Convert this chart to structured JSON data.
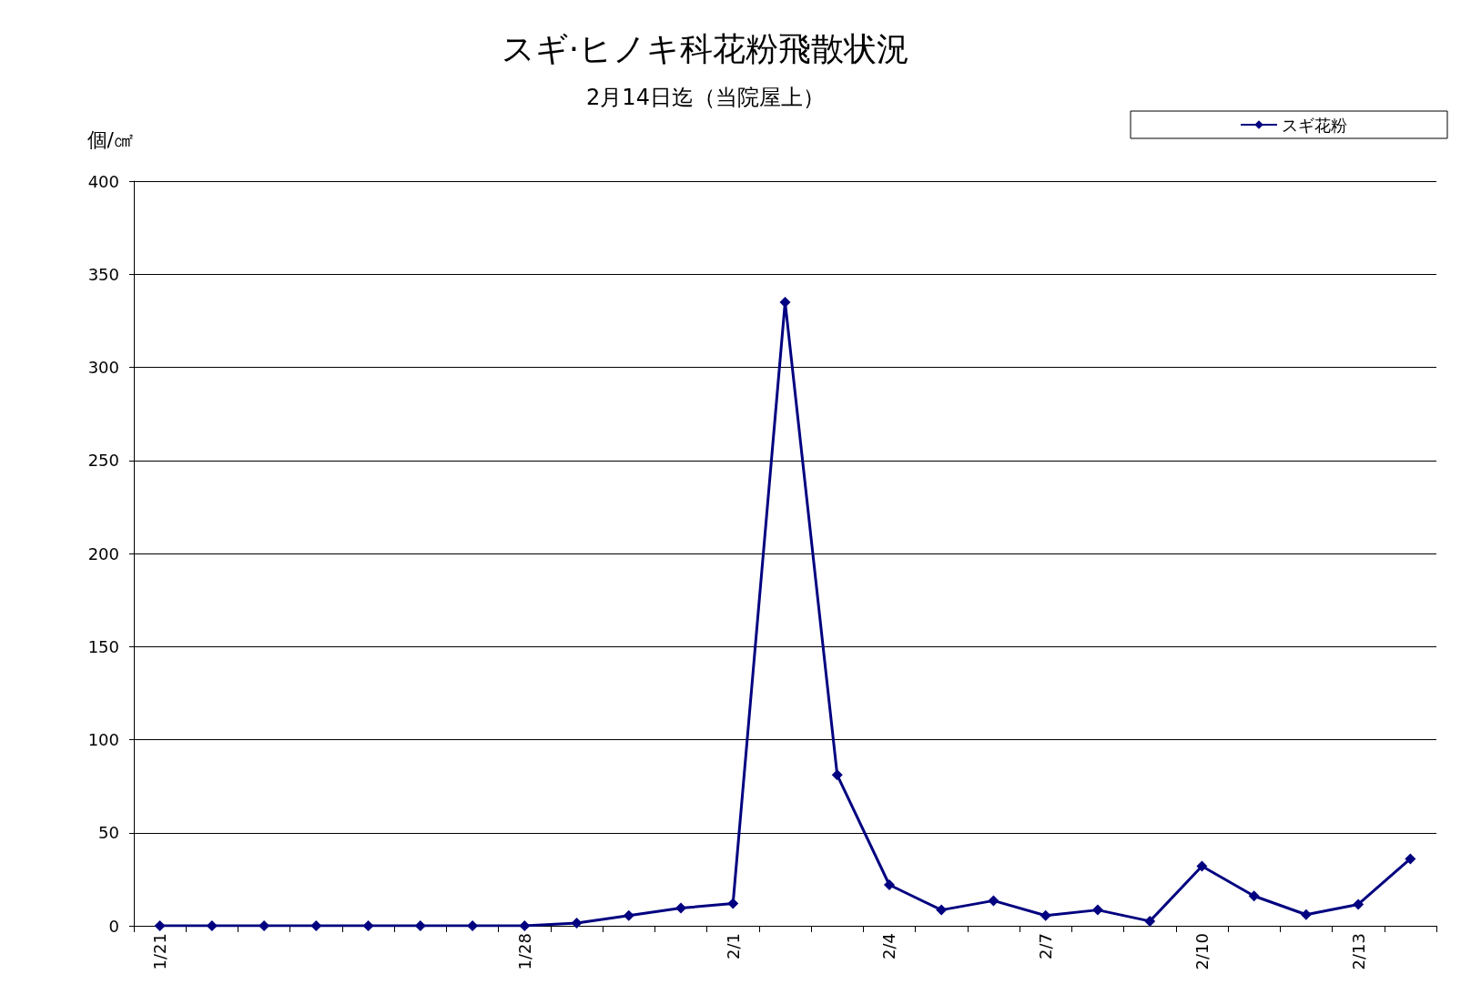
{
  "chart_data": {
    "type": "line",
    "title": "スギ·ヒノキ科花粉飛散状況",
    "subtitle": "2月14日迄（当院屋上）",
    "ylabel": "個/㎠",
    "categories": [
      "1/21",
      null,
      null,
      null,
      null,
      null,
      null,
      "1/28",
      null,
      null,
      null,
      "2/1",
      null,
      null,
      "2/4",
      null,
      null,
      "2/7",
      null,
      null,
      "2/10",
      null,
      null,
      "2/13",
      null
    ],
    "series": [
      {
        "name": "スギ花粉",
        "color": "#000080",
        "values": [
          0,
          0,
          0,
          0,
          0,
          0,
          0,
          0,
          1.5,
          5.5,
          9.5,
          12,
          335,
          81,
          22,
          8.5,
          13.5,
          5.5,
          8.5,
          2.5,
          32,
          16,
          6,
          11.5,
          36
        ]
      }
    ],
    "ylim": [
      0,
      400
    ],
    "yticks": [
      0,
      50,
      100,
      150,
      200,
      250,
      300,
      350,
      400
    ],
    "grid": "y",
    "legend": "top right",
    "marker": "diamond",
    "line_style": "solid"
  }
}
